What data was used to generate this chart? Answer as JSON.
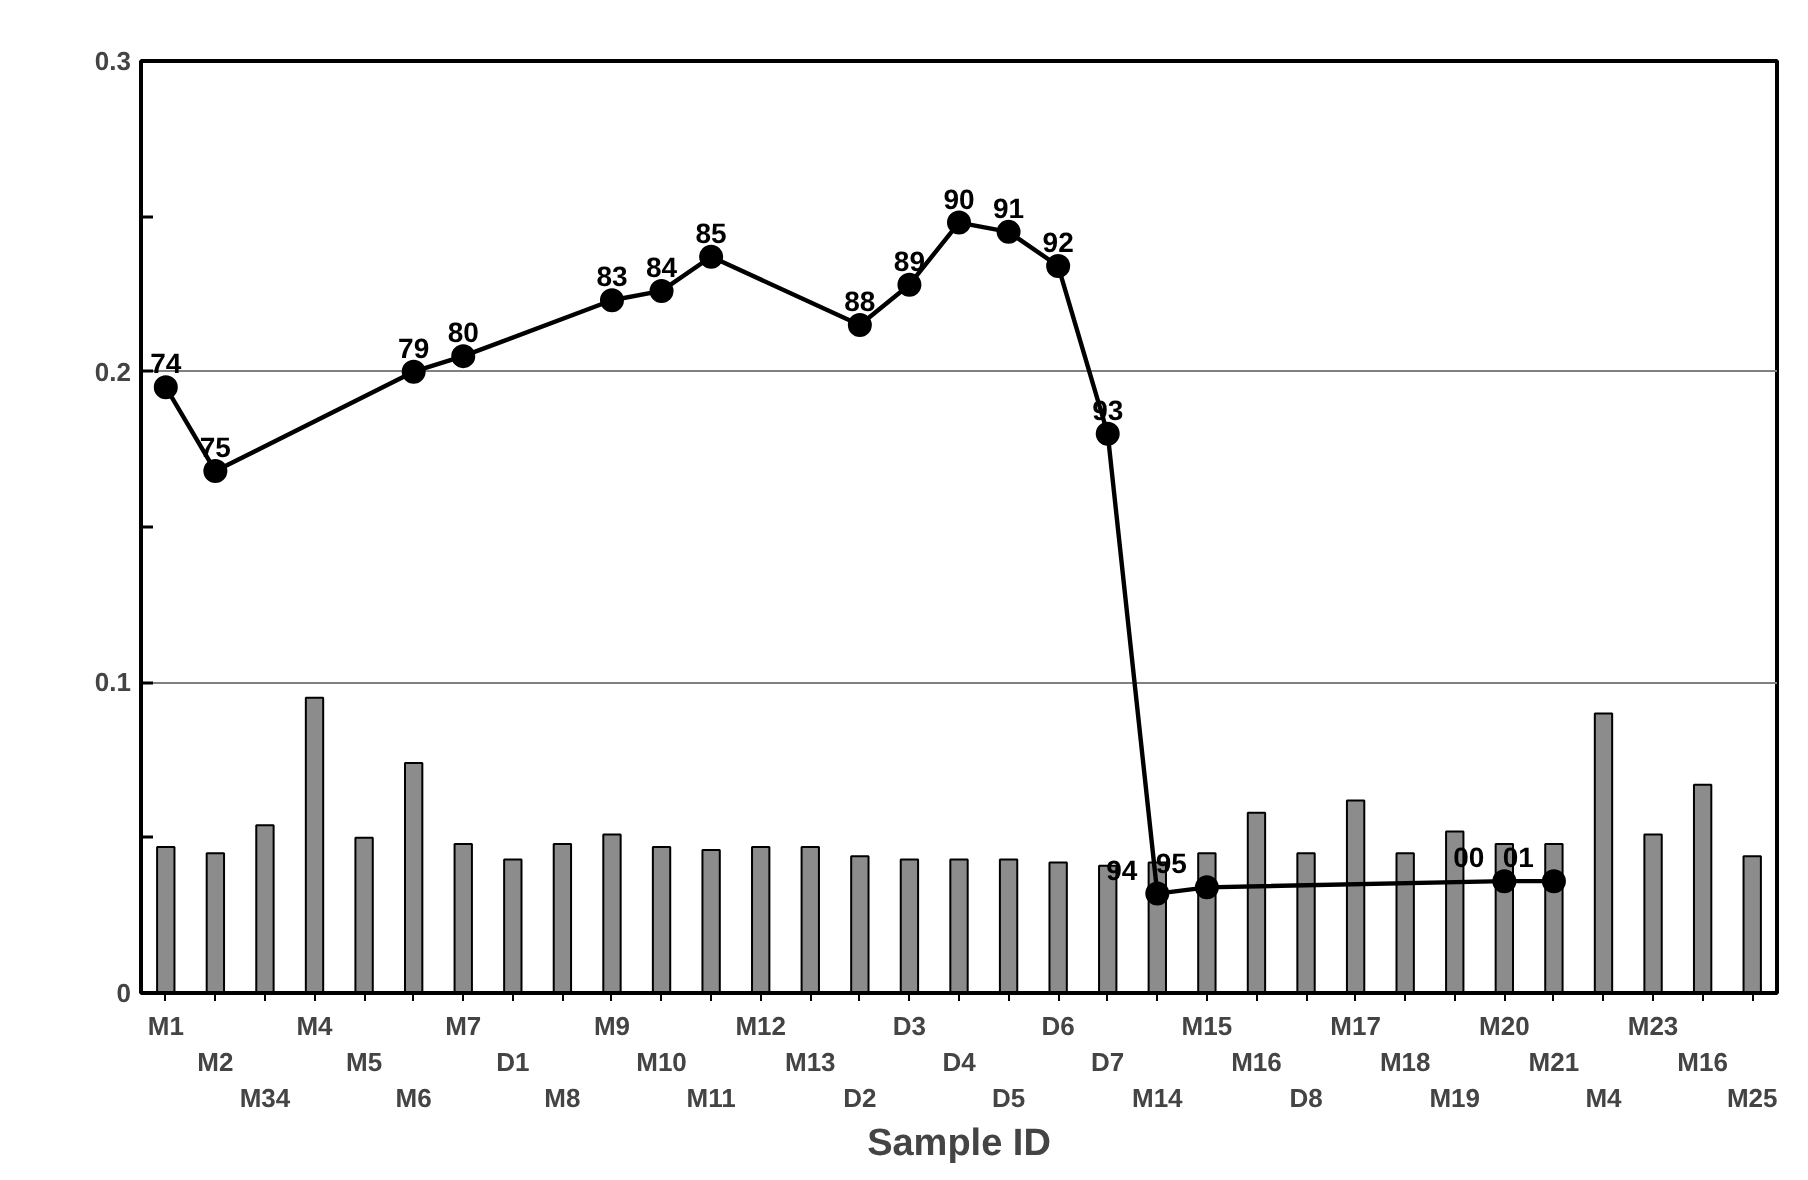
{
  "chart_data": {
    "type": "bar",
    "xlabel": "Sample ID",
    "categories": [
      "M1",
      "M2",
      "M34",
      "M4",
      "M5",
      "M6",
      "M7",
      "D1",
      "M8",
      "M9",
      "M10",
      "M11",
      "M12",
      "M13",
      "D2",
      "D3",
      "D4",
      "D5",
      "D6",
      "D7",
      "M14",
      "M15",
      "M16",
      "D8",
      "M17",
      "M18",
      "M19",
      "M20",
      "M21",
      "M4",
      "M23",
      "M16",
      "M25"
    ],
    "series": [
      {
        "color": "#8c8c8c",
        "values": [
          0.047,
          0.045,
          0.054,
          0.095,
          0.05,
          0.074,
          0.048,
          0.043,
          0.048,
          0.051,
          0.047,
          0.046,
          0.047,
          0.047,
          0.044,
          0.043,
          0.043,
          0.043,
          0.042,
          0.041,
          0.042,
          0.045,
          0.058,
          0.045,
          0.062,
          0.045,
          0.052,
          0.048,
          0.048,
          0.09,
          0.051,
          0.067,
          0.044
        ]
      },
      {
        "type": "line",
        "color": "#000000",
        "marker": "circle",
        "line_style": "solid",
        "values": [
          0.195,
          0.168,
          null,
          null,
          null,
          0.2,
          0.205,
          null,
          null,
          0.223,
          0.226,
          0.237,
          null,
          null,
          0.215,
          0.228,
          0.248,
          0.245,
          0.234,
          0.18,
          0.032,
          0.034,
          null,
          null,
          null,
          null,
          null,
          0.036,
          0.036,
          null,
          null,
          null,
          null
        ]
      }
    ],
    "annotations": [
      {
        "text": "74",
        "x": "M1",
        "y": 0.195
      },
      {
        "text": "75",
        "x": "M2",
        "y": 0.168
      },
      {
        "text": "79",
        "x": "M6",
        "y": 0.2
      },
      {
        "text": "80",
        "x": "M7",
        "y": 0.205
      },
      {
        "text": "83",
        "x": "M9",
        "y": 0.223
      },
      {
        "text": "84",
        "x": "M10",
        "y": 0.226
      },
      {
        "text": "85",
        "x": "M11",
        "y": 0.237
      },
      {
        "text": "88",
        "x": "D2",
        "y": 0.215
      },
      {
        "text": "89",
        "x": "D3",
        "y": 0.228
      },
      {
        "text": "90",
        "x": "D4",
        "y": 0.248
      },
      {
        "text": "91",
        "x": "D5",
        "y": 0.245
      },
      {
        "text": "92",
        "x": "D6",
        "y": 0.234
      },
      {
        "text": "93",
        "x": "D7",
        "y": 0.18
      },
      {
        "text": "94",
        "x": "M14",
        "y": 0.032
      },
      {
        "text": "95",
        "x": "M15",
        "y": 0.034
      },
      {
        "text": "00",
        "x": "M20",
        "y": 0.036
      },
      {
        "text": "01",
        "x": "M21",
        "y": 0.036
      }
    ],
    "ylim": [
      0,
      0.3
    ],
    "yticks": [
      {
        "value": 0,
        "label": "0"
      },
      {
        "value": 0.05,
        "label": null
      },
      {
        "value": 0.1,
        "label": "0.1"
      },
      {
        "value": 0.15,
        "label": null
      },
      {
        "value": 0.2,
        "label": "0.2"
      },
      {
        "value": 0.25,
        "label": null
      },
      {
        "value": 0.3,
        "label": "0.3"
      }
    ],
    "grid": "y"
  }
}
